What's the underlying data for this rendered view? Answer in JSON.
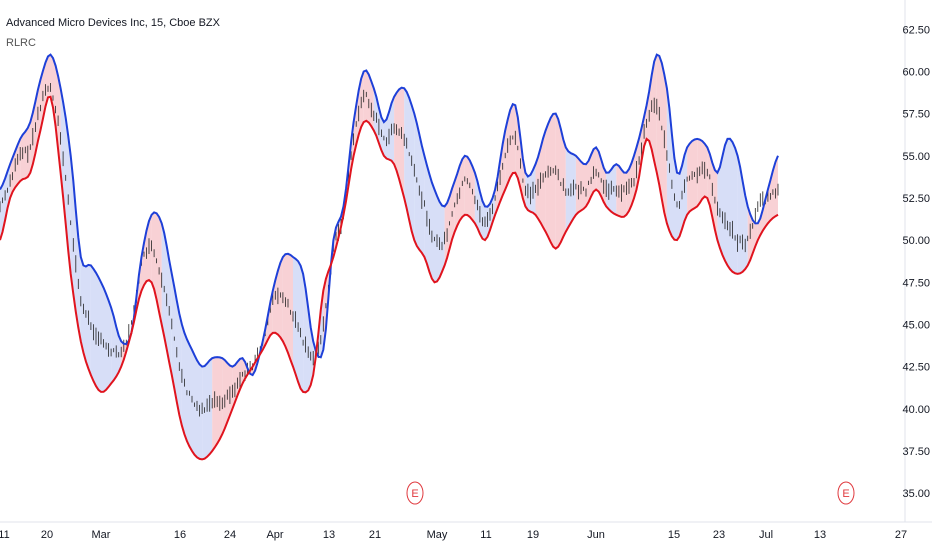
{
  "header": {
    "symbol_title": "Advanced Micro Devices Inc, 15, Cboe BZX",
    "indicator_name": "RLRC"
  },
  "colors": {
    "upper_band": "#1e40d8",
    "lower_band": "#e0141e",
    "fill_up": "#f5c2c7",
    "fill_down": "#c9d3f4",
    "candles": "#222222",
    "axis_text": "#131722",
    "earnings": "#e0393e"
  },
  "chart_data": {
    "type": "line",
    "title": "Advanced Micro Devices Inc, 15, Cboe BZX",
    "indicator": "RLRC",
    "ylim": [
      34.0,
      64.0
    ],
    "y_ticks": [
      "62.50",
      "60.00",
      "57.50",
      "55.00",
      "52.50",
      "50.00",
      "47.50",
      "45.00",
      "42.50",
      "40.00",
      "37.50",
      "35.00"
    ],
    "x_ticks": [
      "11",
      "20",
      "Mar",
      "16",
      "24",
      "Apr",
      "13",
      "21",
      "May",
      "11",
      "19",
      "Jun",
      "15",
      "23",
      "Jul",
      "13",
      "27"
    ],
    "earnings_markers": [
      "E",
      "E"
    ],
    "series": [
      {
        "name": "Upper band",
        "values": [
          53.0,
          54.5,
          56.0,
          57.0,
          59.5,
          61.0,
          59.0,
          55.0,
          49.0,
          48.5,
          47.5,
          46.0,
          44.0,
          44.5,
          49.0,
          51.5,
          51.0,
          48.0,
          45.0,
          43.5,
          42.5,
          43.0,
          43.0,
          42.5,
          43.0,
          42.0,
          44.0,
          47.0,
          49.0,
          49.0,
          48.0,
          44.0,
          43.5,
          50.0,
          52.0,
          57.0,
          60.0,
          59.0,
          57.0,
          58.5,
          59.0,
          57.5,
          55.0,
          53.0,
          52.0,
          53.5,
          55.0,
          54.0,
          52.0,
          53.0,
          56.5,
          58.0,
          54.0,
          54.5,
          56.5,
          57.5,
          55.5,
          55.0,
          54.5,
          55.5,
          54.0,
          54.5,
          54.0,
          55.5,
          58.0,
          61.0,
          59.0,
          54.0,
          55.5,
          56.0,
          55.5,
          54.0,
          56.0,
          55.0,
          52.0,
          51.0,
          53.0,
          55.0
        ],
        "note": "smoothed envelope"
      },
      {
        "name": "Lower band",
        "values": [
          50.0,
          52.5,
          53.5,
          54.0,
          56.5,
          58.5,
          54.0,
          48.0,
          44.0,
          42.0,
          41.0,
          41.5,
          42.5,
          44.5,
          47.0,
          47.5,
          45.0,
          42.0,
          39.0,
          37.5,
          37.0,
          37.5,
          38.5,
          40.0,
          41.5,
          42.5,
          43.5,
          44.5,
          44.0,
          42.5,
          41.0,
          42.0,
          47.0,
          49.0,
          51.5,
          55.0,
          57.0,
          56.5,
          55.0,
          54.5,
          52.5,
          50.0,
          49.0,
          47.5,
          48.5,
          50.5,
          51.5,
          51.0,
          50.0,
          51.5,
          53.0,
          54.0,
          52.0,
          51.5,
          50.5,
          49.5,
          50.5,
          51.5,
          52.0,
          53.0,
          52.0,
          51.5,
          51.5,
          53.0,
          56.0,
          54.0,
          51.0,
          50.0,
          51.5,
          52.0,
          52.5,
          50.0,
          48.5,
          48.0,
          48.5,
          50.0,
          51.0,
          51.5
        ]
      },
      {
        "name": "Price",
        "values": [
          52.0,
          53.5,
          55.0,
          55.5,
          58.0,
          59.0,
          56.0,
          51.0,
          46.5,
          45.0,
          44.0,
          43.5,
          43.5,
          45.0,
          48.5,
          49.5,
          47.5,
          45.0,
          42.0,
          40.5,
          40.0,
          40.5,
          40.5,
          41.0,
          42.0,
          42.5,
          44.0,
          46.5,
          46.5,
          45.5,
          44.0,
          43.0,
          45.0,
          49.5,
          51.5,
          56.0,
          58.5,
          57.5,
          56.0,
          56.5,
          56.0,
          54.0,
          52.0,
          50.0,
          50.0,
          52.0,
          53.5,
          52.5,
          51.0,
          52.5,
          55.0,
          56.0,
          53.0,
          53.0,
          54.0,
          54.0,
          53.0,
          53.0,
          53.0,
          54.0,
          53.0,
          53.0,
          53.0,
          54.0,
          57.0,
          58.0,
          55.0,
          52.0,
          53.5,
          54.0,
          54.0,
          52.0,
          51.0,
          50.0,
          50.0,
          52.0,
          52.5,
          53.0
        ]
      }
    ]
  }
}
